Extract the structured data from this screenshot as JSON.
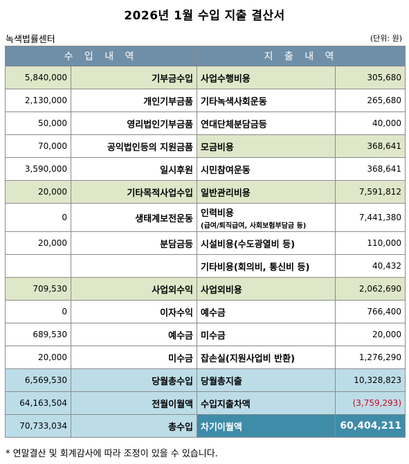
{
  "title": "2026년 1월 수입 지출 결산서",
  "org": "녹색법률센터",
  "unit": "(단위: 원)",
  "headers": {
    "income": "수 입 내 역",
    "expense": "지 출 내 역"
  },
  "rows": [
    {
      "in_amt": "5,840,000",
      "in_label": "기부금수입",
      "ex_label": "사업수행비용",
      "ex_sub": "",
      "ex_amt": "305,680",
      "style": "green"
    },
    {
      "in_amt": "2,130,000",
      "in_label": "개인기부금품",
      "ex_label": "기타녹색사회운동",
      "ex_sub": "",
      "ex_amt": "265,680",
      "style": ""
    },
    {
      "in_amt": "50,000",
      "in_label": "영리법인기부금품",
      "ex_label": "연대단체분담금등",
      "ex_sub": "",
      "ex_amt": "40,000",
      "style": ""
    },
    {
      "in_amt": "70,000",
      "in_label": "공익법인등의 지원금품",
      "ex_label": "모금비용",
      "ex_sub": "",
      "ex_amt": "368,641",
      "style": "ex-green"
    },
    {
      "in_amt": "3,590,000",
      "in_label": "일시후원",
      "ex_label": "시민참여운동",
      "ex_sub": "",
      "ex_amt": "368,641",
      "style": ""
    },
    {
      "in_amt": "20,000",
      "in_label": "기타목적사업수입",
      "ex_label": "일반관리비용",
      "ex_sub": "",
      "ex_amt": "7,591,812",
      "style": "green"
    },
    {
      "in_amt": "0",
      "in_label": "생태계보전운동",
      "ex_label": "인력비용",
      "ex_sub": "(급여/퇴직급여, 사회보험부담금 등)",
      "ex_amt": "7,441,380",
      "style": "tall"
    },
    {
      "in_amt": "20,000",
      "in_label": "분담금등",
      "ex_label": "시설비용(수도광열비 등)",
      "ex_sub": "",
      "ex_amt": "110,000",
      "style": ""
    },
    {
      "in_amt": "",
      "in_label": "",
      "ex_label": "기타비용(회의비, 통신비 등)",
      "ex_sub": "",
      "ex_amt": "40,432",
      "style": ""
    },
    {
      "in_amt": "709,530",
      "in_label": "사업외수익",
      "ex_label": "사업외비용",
      "ex_sub": "",
      "ex_amt": "2,062,690",
      "style": "green"
    },
    {
      "in_amt": "0",
      "in_label": "이자수익",
      "ex_label": "예수금",
      "ex_sub": "",
      "ex_amt": "766,400",
      "style": ""
    },
    {
      "in_amt": "689,530",
      "in_label": "예수금",
      "ex_label": "미수금",
      "ex_sub": "",
      "ex_amt": "20,000",
      "style": ""
    },
    {
      "in_amt": "20,000",
      "in_label": "미수금",
      "ex_label": "잡손실(지원사업비 반환)",
      "ex_sub": "",
      "ex_amt": "1,276,290",
      "style": ""
    },
    {
      "in_amt": "6,569,530",
      "in_label": "당월총수입",
      "ex_label": "당월총지출",
      "ex_sub": "",
      "ex_amt": "10,328,823",
      "style": "blue"
    },
    {
      "in_amt": "64,163,504",
      "in_label": "전월이월액",
      "ex_label": "수입지출차액",
      "ex_sub": "",
      "ex_amt": "(3,759,293)",
      "style": "blue-neg"
    },
    {
      "in_amt": "70,733,034",
      "in_label": "총수입",
      "ex_label": "차기이월액",
      "ex_sub": "",
      "ex_amt": "60,404,211",
      "style": "final"
    }
  ],
  "footnote": "* 연말결산 및 회계감사에 따라 조정이 있을 수 있습니다.",
  "colors": {
    "header": "#6f8fa8",
    "green": "#dfe7c9",
    "blue": "#bcdde8",
    "dark": "#3f8ca9",
    "negative": "#d0021b"
  }
}
